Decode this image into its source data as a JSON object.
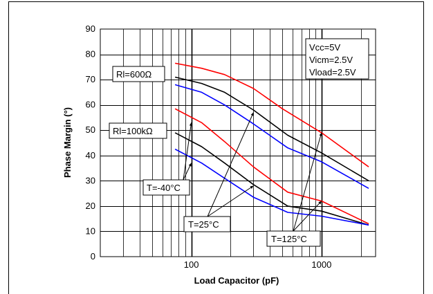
{
  "chart_data": {
    "type": "line",
    "xscale": "log",
    "xlim": [
      20,
      2600
    ],
    "ylim": [
      0,
      90
    ],
    "xlabel": "Load Capacitor (pF)",
    "ylabel": "Phase Margin (°)",
    "x_ticks": [
      100,
      1000
    ],
    "y_ticks": [
      0,
      10,
      20,
      30,
      40,
      50,
      60,
      70,
      80,
      90
    ],
    "grid": true,
    "conditions": [
      "Vcc=5V",
      "Vicm=2.5V",
      "Vload=2.5V"
    ],
    "group_labels": [
      "Rl=600Ω",
      "Rl=100kΩ"
    ],
    "temperature_labels": [
      "T=-40°C",
      "T=25°C",
      "T=125°C"
    ],
    "colors": {
      "T=-40°C": "#0000ff",
      "T=25°C": "#000000",
      "T=125°C": "#ff0000"
    },
    "series": [
      {
        "name": "Rl=600Ω, T=125°C",
        "color": "#ff0000",
        "x": [
          75,
          120,
          180,
          300,
          500,
          1000,
          2300
        ],
        "y": [
          76.5,
          74.5,
          72,
          66.5,
          58.5,
          49,
          35.5
        ]
      },
      {
        "name": "Rl=600Ω, T=25°C",
        "color": "#000000",
        "x": [
          75,
          120,
          180,
          300,
          550,
          1000,
          2300
        ],
        "y": [
          71,
          68.5,
          65,
          58,
          48,
          41,
          30
        ]
      },
      {
        "name": "Rl=600Ω, T=-40°C",
        "color": "#0000ff",
        "x": [
          75,
          120,
          180,
          300,
          550,
          1000,
          2300
        ],
        "y": [
          68,
          65,
          60,
          52.5,
          43,
          37.5,
          27
        ]
      },
      {
        "name": "Rl=100kΩ, T=125°C",
        "color": "#ff0000",
        "x": [
          75,
          120,
          180,
          300,
          550,
          1000,
          2300
        ],
        "y": [
          58.5,
          53,
          45.5,
          35.5,
          25.5,
          22,
          13
        ]
      },
      {
        "name": "Rl=100kΩ, T=25°C",
        "color": "#000000",
        "x": [
          75,
          120,
          180,
          300,
          550,
          1000,
          2300
        ],
        "y": [
          49,
          43.5,
          37,
          28.5,
          20,
          18,
          12.5
        ]
      },
      {
        "name": "Rl=100kΩ, T=-40°C",
        "color": "#0000ff",
        "x": [
          75,
          120,
          180,
          300,
          550,
          1000,
          2300
        ],
        "y": [
          42.5,
          37,
          31,
          23.5,
          17.5,
          16,
          12.5
        ]
      }
    ]
  }
}
